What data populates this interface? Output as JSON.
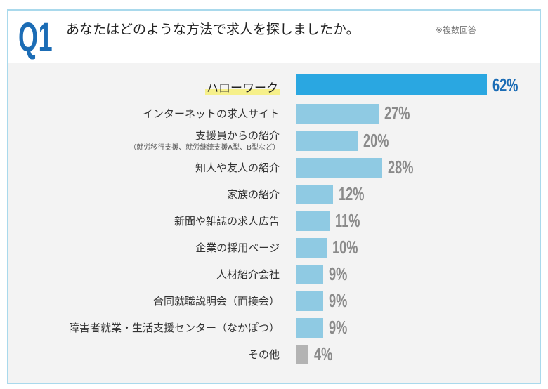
{
  "header": {
    "q": "Q1",
    "title": "あなたはどのような方法で求人を探しましたか。",
    "note": "※複数回答"
  },
  "chart_data": {
    "type": "bar",
    "orientation": "horizontal",
    "categories": [
      "ハローワーク",
      "インターネットの求人サイト",
      "支援員からの紹介",
      "知人や友人の紹介",
      "家族の紹介",
      "新聞や雑誌の求人広告",
      "企業の採用ページ",
      "人材紹介会社",
      "合同就職説明会（面接会）",
      "障害者就業・生活支援センター（なかぽつ）",
      "その他"
    ],
    "sublabels": {
      "2": "（就労移行支援、就労継続支援A型、B型など）"
    },
    "values": [
      62,
      27,
      20,
      28,
      12,
      11,
      10,
      9,
      9,
      9,
      4
    ],
    "value_labels": [
      "62%",
      "27%",
      "20%",
      "28%",
      "12%",
      "11%",
      "10%",
      "9%",
      "9%",
      "9%",
      "4%"
    ],
    "colors": {
      "highlight_bar": "#2aa7e1",
      "bar": "#8fcae3",
      "other_bar": "#b3b3b3",
      "highlight_value": "#1b6cb5",
      "value": "#8a8a8a"
    }
  }
}
